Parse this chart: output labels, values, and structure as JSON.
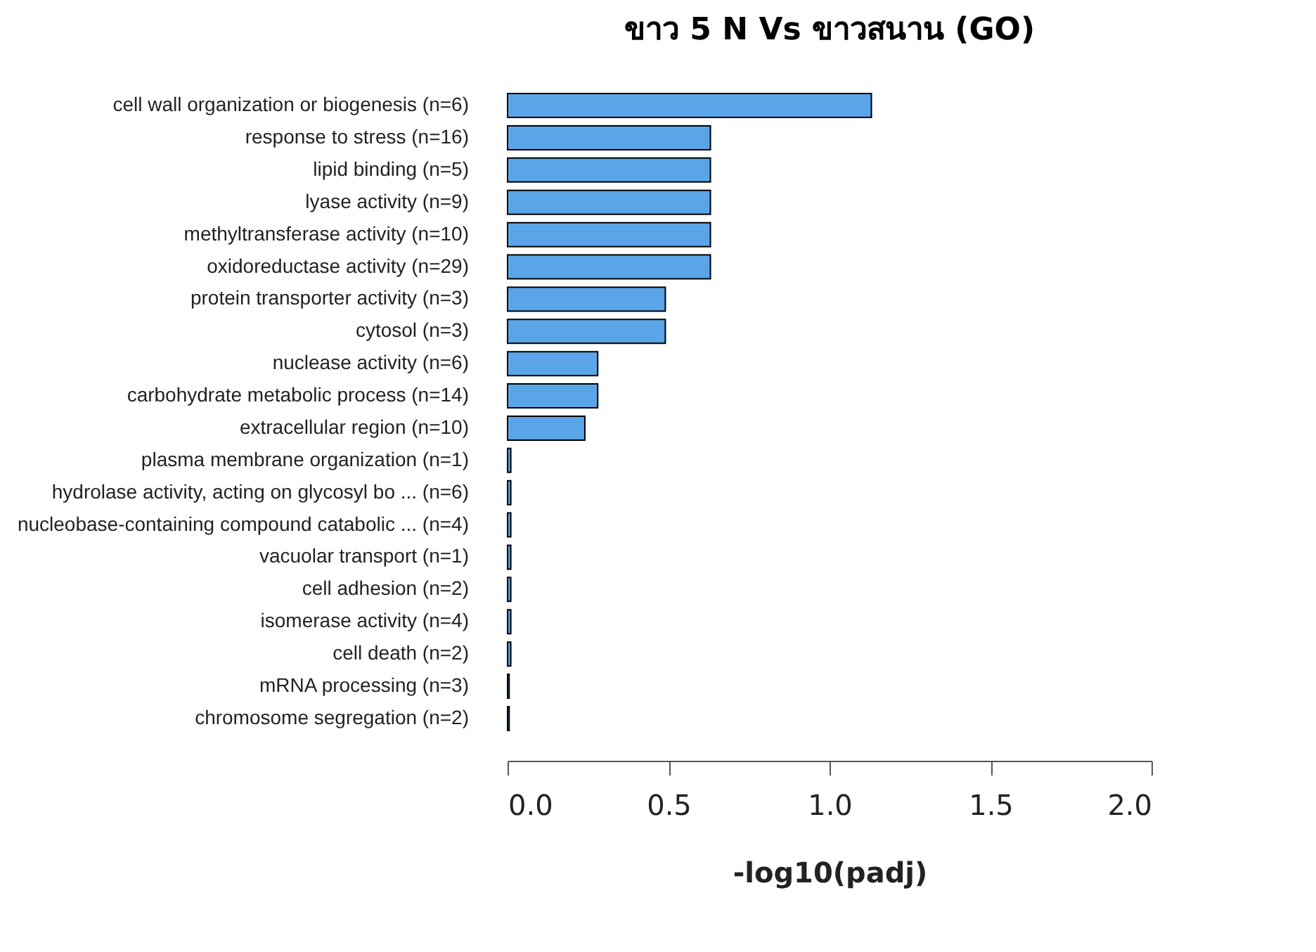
{
  "chart_data": {
    "type": "bar",
    "orientation": "horizontal",
    "title": "ขาว 5 N Vs ขาวสนาน  (GO)",
    "xlabel": "-log10(padj)",
    "categories": [
      "cell wall organization or biogenesis (n=6)",
      "response to stress (n=16)",
      "lipid binding (n=5)",
      "lyase activity (n=9)",
      "methyltransferase activity (n=10)",
      "oxidoreductase activity (n=29)",
      "protein transporter activity (n=3)",
      "cytosol (n=3)",
      "nuclease activity (n=6)",
      "carbohydrate metabolic process (n=14)",
      "extracellular region (n=10)",
      "plasma membrane organization (n=1)",
      "hydrolase activity, acting on glycosyl bo ... (n=6)",
      "nucleobase-containing compound catabolic  ... (n=4)",
      "vacuolar transport (n=1)",
      "cell adhesion (n=2)",
      "isomerase activity (n=4)",
      "cell death (n=2)",
      "mRNA processing (n=3)",
      "chromosome segregation (n=2)"
    ],
    "values": [
      1.13,
      0.63,
      0.63,
      0.63,
      0.63,
      0.63,
      0.49,
      0.49,
      0.28,
      0.28,
      0.24,
      0.01,
      0.01,
      0.01,
      0.01,
      0.01,
      0.01,
      0.01,
      0.005,
      0.005
    ],
    "color": "#5aa5e8",
    "xlim": [
      0,
      2
    ],
    "xticks": [
      {
        "value": 0,
        "label": "0.0"
      },
      {
        "value": 0.5,
        "label": "0.5"
      },
      {
        "value": 1,
        "label": "1.0"
      },
      {
        "value": 1.5,
        "label": "1.5"
      },
      {
        "value": 2,
        "label": "2.0"
      }
    ],
    "grid": false
  }
}
